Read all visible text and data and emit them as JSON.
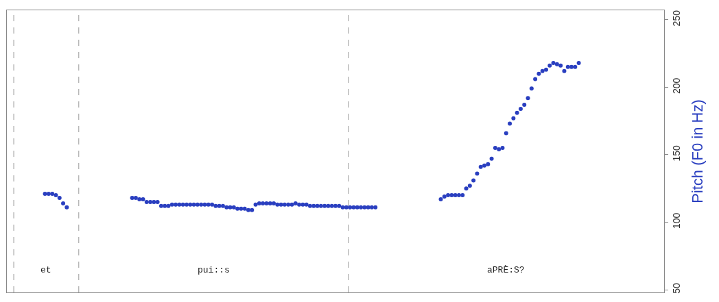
{
  "chart_data": {
    "type": "scatter",
    "ylabel": "Pitch (F0 in Hz)",
    "tick_labels": "y",
    "marker": "circle",
    "categories": [
      null,
      null,
      null,
      null,
      null,
      null,
      null,
      null,
      null,
      null,
      null,
      null,
      null,
      null,
      null,
      null,
      null,
      null,
      null,
      null,
      null,
      null,
      null,
      null,
      null,
      null,
      null,
      null,
      null,
      null,
      null,
      null,
      null,
      null,
      null,
      null,
      null,
      null,
      null,
      null,
      null,
      null,
      null,
      null,
      null,
      null,
      null,
      null,
      null,
      null,
      null,
      null,
      null,
      null,
      null,
      null,
      null,
      null,
      null,
      null,
      null,
      null,
      null,
      null,
      null,
      null,
      null,
      null,
      null,
      null,
      null,
      null,
      null,
      null,
      null,
      null,
      null,
      null,
      null,
      null,
      null,
      null,
      null,
      null,
      null,
      null,
      null,
      null,
      null,
      null,
      null,
      null,
      null,
      null,
      null,
      null,
      null,
      null,
      null,
      null,
      null,
      null,
      null,
      null,
      null,
      null,
      null,
      null,
      null,
      null,
      null,
      null,
      null,
      null,
      null,
      null,
      null,
      null,
      null,
      null,
      null,
      null,
      null,
      null,
      null,
      null,
      null,
      null,
      null,
      null,
      null,
      null,
      null,
      null,
      null,
      null,
      null,
      null,
      null,
      null,
      null,
      null,
      null,
      null,
      null,
      null,
      null,
      null,
      null,
      null,
      null,
      null,
      null,
      null,
      null,
      null,
      null,
      null,
      null,
      null,
      null,
      null,
      null,
      null,
      null,
      null,
      null,
      null,
      null,
      null,
      null,
      null,
      null,
      null,
      null,
      null,
      null,
      null,
      null,
      null,
      null
    ],
    "ylim": [
      48,
      257
    ],
    "yticks": [
      50,
      100,
      150,
      200,
      250
    ],
    "series": [
      {
        "color": "#2a3fc0",
        "values": [
          null,
          null,
          null,
          null,
          null,
          null,
          null,
          null,
          null,
          null,
          121,
          121,
          121,
          120,
          118,
          114,
          111,
          null,
          null,
          null,
          null,
          null,
          null,
          null,
          null,
          null,
          null,
          null,
          null,
          null,
          null,
          null,
          null,
          null,
          118,
          118,
          117,
          117,
          115,
          115,
          115,
          115,
          112,
          112,
          112,
          113,
          113,
          113,
          113,
          113,
          113,
          113,
          113,
          113,
          113,
          113,
          113,
          112,
          112,
          112,
          111,
          111,
          111,
          110,
          110,
          110,
          109,
          109,
          113,
          114,
          114,
          114,
          114,
          114,
          113,
          113,
          113,
          113,
          113,
          114,
          113,
          113,
          113,
          112,
          112,
          112,
          112,
          112,
          112,
          112,
          112,
          112,
          111,
          111,
          111,
          111,
          111,
          111,
          111,
          111,
          111,
          111,
          null,
          null,
          null,
          null,
          null,
          null,
          null,
          null,
          null,
          null,
          null,
          null,
          null,
          null,
          null,
          null,
          null,
          117,
          119,
          120,
          120,
          120,
          120,
          120,
          125,
          127,
          131,
          136,
          141,
          142,
          143,
          147,
          155,
          154,
          155,
          166,
          173,
          177,
          181,
          184,
          187,
          192,
          199,
          206,
          210,
          212,
          213,
          216,
          218,
          217,
          216,
          212,
          215,
          215,
          215,
          218,
          null,
          null,
          null,
          null,
          null,
          null,
          null,
          null,
          null,
          null,
          null,
          null,
          null,
          null,
          null,
          null,
          null,
          null,
          null,
          null,
          null,
          null,
          null
        ]
      }
    ],
    "annotations": [
      "et",
      "pui::s",
      "aPRÈ:S?"
    ]
  }
}
